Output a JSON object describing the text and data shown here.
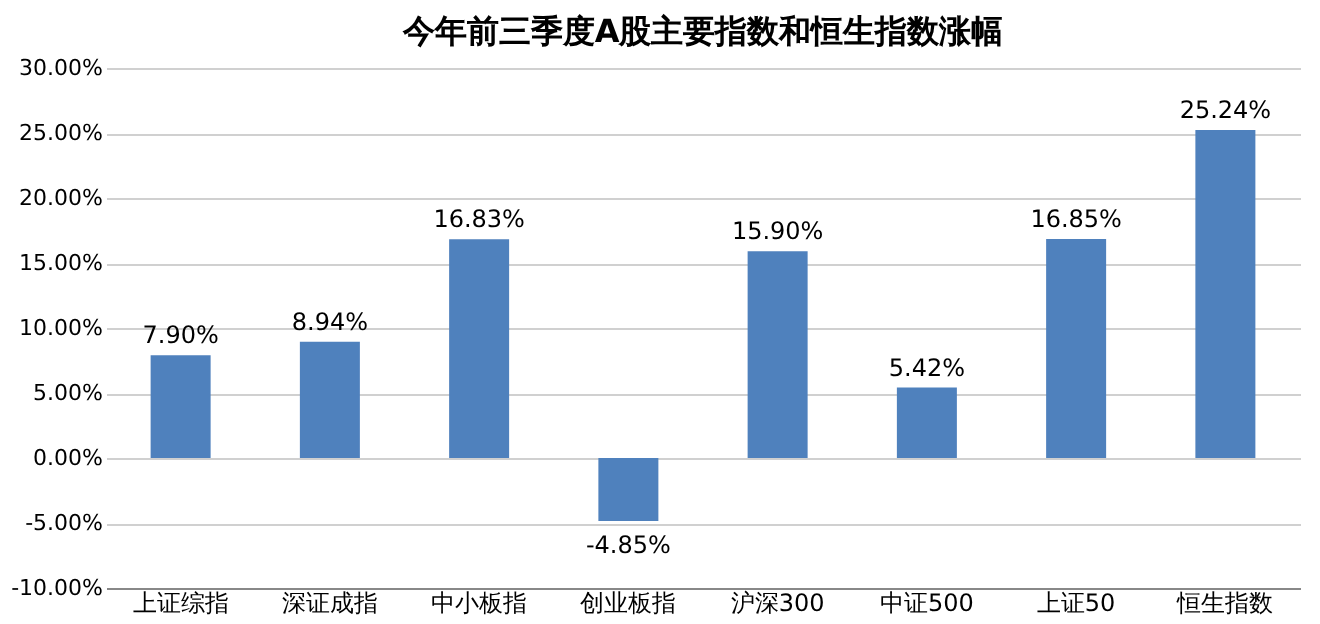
{
  "chart_data": {
    "type": "bar",
    "title": "今年前三季度A股主要指数和恒生指数涨幅",
    "categories": [
      "上证综指",
      "深证成指",
      "中小板指",
      "创业板指",
      "沪深300",
      "中证500",
      "上证50",
      "恒生指数"
    ],
    "values": [
      7.9,
      8.94,
      16.83,
      -4.85,
      15.9,
      5.42,
      16.85,
      25.24
    ],
    "value_labels": [
      "7.90%",
      "8.94%",
      "16.83%",
      "-4.85%",
      "15.90%",
      "5.42%",
      "16.85%",
      "25.24%"
    ],
    "color": "#4f81bd",
    "ylim": [
      -10,
      30
    ],
    "yticks": [
      {
        "value": -10,
        "label": "-10.00%"
      },
      {
        "value": -5,
        "label": "-5.00%"
      },
      {
        "value": 0,
        "label": "0.00%"
      },
      {
        "value": 5,
        "label": "5.00%"
      },
      {
        "value": 10,
        "label": "10.00%"
      },
      {
        "value": 15,
        "label": "15.00%"
      },
      {
        "value": 20,
        "label": "20.00%"
      },
      {
        "value": 25,
        "label": "25.00%"
      },
      {
        "value": 30,
        "label": "30.00%"
      }
    ],
    "grid": "y"
  }
}
